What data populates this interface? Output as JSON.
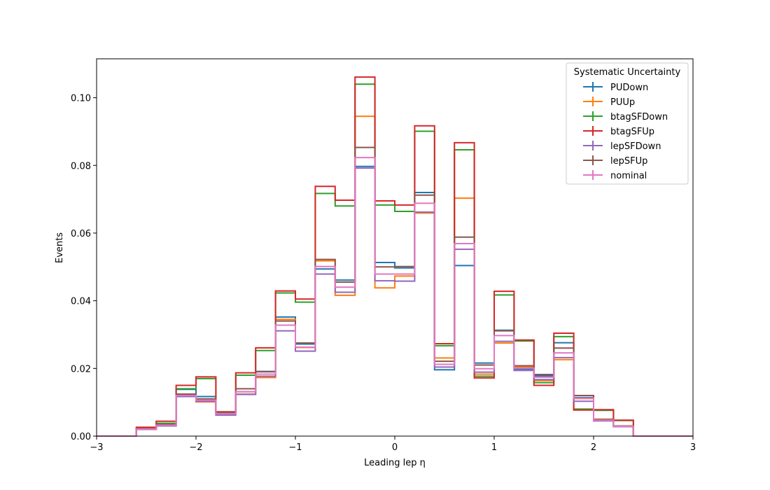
{
  "chart_data": {
    "type": "line",
    "subtype": "step-histogram",
    "xlabel": "Leading lep η",
    "ylabel": "Events",
    "xlim": [
      -3,
      3
    ],
    "ylim": [
      0,
      0.1115
    ],
    "xticks": [
      -3,
      -2,
      -1,
      0,
      1,
      2,
      3
    ],
    "xtick_labels": [
      "−3",
      "−2",
      "−1",
      "0",
      "1",
      "2",
      "3"
    ],
    "yticks": [
      0,
      0.02,
      0.04,
      0.06,
      0.08,
      0.1
    ],
    "ytick_labels": [
      "0.00",
      "0.02",
      "0.04",
      "0.06",
      "0.08",
      "0.10"
    ],
    "grid": false,
    "legend": {
      "title": "Systematic Uncertainty",
      "placement": "top-right"
    },
    "bin_edges": [
      -3.0,
      -2.8,
      -2.6,
      -2.4,
      -2.2,
      -2.0,
      -1.8,
      -1.6,
      -1.4,
      -1.2,
      -1.0,
      -0.8,
      -0.6,
      -0.4,
      -0.2,
      0.0,
      0.2,
      0.4,
      0.6,
      0.8,
      1.0,
      1.2,
      1.4,
      1.6,
      1.8,
      2.0,
      2.2,
      2.4,
      2.6,
      2.8,
      3.0
    ],
    "series": [
      {
        "name": "PUDown",
        "color": "#1f77b4",
        "values": [
          0,
          0,
          0.0022,
          0.0033,
          0.0138,
          0.0117,
          0.0069,
          0.0131,
          0.0191,
          0.0352,
          0.0272,
          0.0494,
          0.0461,
          0.0797,
          0.0513,
          0.0497,
          0.072,
          0.0196,
          0.0504,
          0.0216,
          0.0313,
          0.0198,
          0.0178,
          0.0276,
          0.0114,
          0.0047,
          0.003,
          0,
          0,
          0
        ]
      },
      {
        "name": "PUUp",
        "color": "#ff7f0e",
        "values": [
          0,
          0,
          0.002,
          0.003,
          0.0121,
          0.0101,
          0.0068,
          0.0124,
          0.0173,
          0.0345,
          0.0262,
          0.0518,
          0.0416,
          0.0945,
          0.0438,
          0.0473,
          0.0659,
          0.0231,
          0.0703,
          0.0183,
          0.0275,
          0.0204,
          0.0164,
          0.0226,
          0.0111,
          0.005,
          0.0029,
          0,
          0,
          0
        ]
      },
      {
        "name": "btagSFDown",
        "color": "#2ca02c",
        "values": [
          0,
          0,
          0.0025,
          0.0038,
          0.014,
          0.017,
          0.007,
          0.018,
          0.0253,
          0.0423,
          0.0396,
          0.0717,
          0.068,
          0.104,
          0.0683,
          0.0664,
          0.0901,
          0.0267,
          0.0846,
          0.0177,
          0.0417,
          0.0281,
          0.0158,
          0.0294,
          0.008,
          0.0076,
          0.0046,
          0,
          0,
          0
        ]
      },
      {
        "name": "btagSFUp",
        "color": "#d62728",
        "values": [
          0,
          0,
          0.0026,
          0.0044,
          0.015,
          0.0175,
          0.0072,
          0.0187,
          0.0261,
          0.0429,
          0.0405,
          0.0738,
          0.0697,
          0.1061,
          0.0695,
          0.0683,
          0.0917,
          0.0273,
          0.0867,
          0.0172,
          0.0428,
          0.0284,
          0.015,
          0.0304,
          0.0077,
          0.0078,
          0.0047,
          0,
          0,
          0
        ]
      },
      {
        "name": "lepSFDown",
        "color": "#9467bd",
        "values": [
          0,
          0,
          0.002,
          0.003,
          0.0117,
          0.0103,
          0.0062,
          0.0123,
          0.0177,
          0.0311,
          0.0251,
          0.0479,
          0.0425,
          0.0792,
          0.0459,
          0.0458,
          0.0662,
          0.0204,
          0.0552,
          0.0189,
          0.028,
          0.0194,
          0.0167,
          0.0232,
          0.0103,
          0.0045,
          0.0028,
          0,
          0,
          0
        ]
      },
      {
        "name": "lepSFUp",
        "color": "#8c564b",
        "values": [
          0,
          0,
          0.0022,
          0.0034,
          0.0124,
          0.011,
          0.007,
          0.014,
          0.019,
          0.034,
          0.0275,
          0.0522,
          0.0455,
          0.0853,
          0.05,
          0.0501,
          0.0712,
          0.0221,
          0.0588,
          0.021,
          0.0311,
          0.0208,
          0.0182,
          0.026,
          0.012,
          0.0049,
          0.003,
          0,
          0,
          0
        ]
      },
      {
        "name": "nominal",
        "color": "#e377c2",
        "values": [
          0,
          0,
          0.0021,
          0.0032,
          0.012,
          0.0106,
          0.0066,
          0.0131,
          0.0183,
          0.0328,
          0.0263,
          0.0501,
          0.044,
          0.0823,
          0.0479,
          0.0479,
          0.0688,
          0.0212,
          0.0569,
          0.0199,
          0.0297,
          0.0201,
          0.0174,
          0.0246,
          0.0112,
          0.0047,
          0.0029,
          0,
          0,
          0
        ]
      }
    ]
  }
}
